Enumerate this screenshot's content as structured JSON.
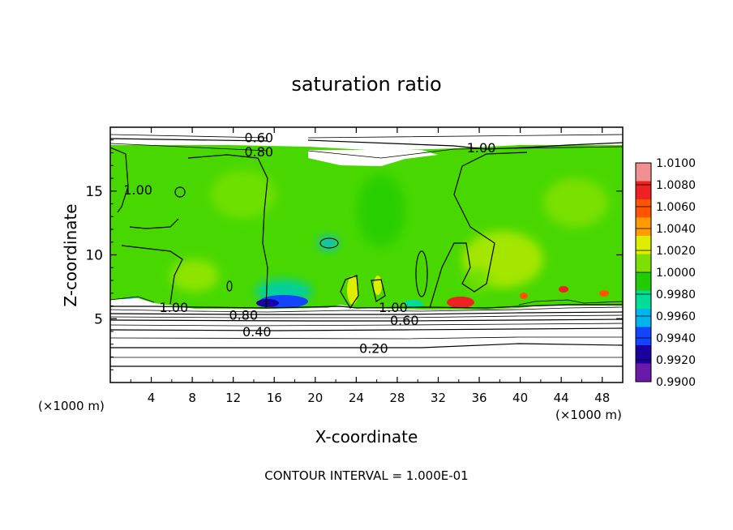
{
  "chart_data": {
    "type": "heatmap",
    "title": "saturation ratio",
    "xlabel": "X-coordinate",
    "ylabel": "Z-coordinate",
    "x_unit_label_left": "(×1000 m)",
    "x_unit_label_right": "(×1000 m)",
    "xlim": [
      0,
      50
    ],
    "ylim": [
      0,
      20
    ],
    "x_ticks": [
      4,
      8,
      12,
      16,
      20,
      24,
      28,
      32,
      36,
      40,
      44,
      48
    ],
    "y_ticks": [
      5,
      10,
      15
    ],
    "footer": "CONTOUR INTERVAL = 1.000E-01",
    "colorbar": {
      "levels": [
        "1.0100",
        "1.0080",
        "1.0060",
        "1.0040",
        "1.0020",
        "1.0000",
        "0.9980",
        "0.9960",
        "0.9940",
        "0.9920",
        "0.9900"
      ],
      "colors": [
        "#f09090",
        "#ee2222",
        "#ff5500",
        "#ff9a00",
        "#ddee00",
        "#7ee000",
        "#22cc00",
        "#00dd99",
        "#00b4ee",
        "#1544ff",
        "#1a00a0",
        "#6a1aa8"
      ]
    },
    "contour_labels": [
      {
        "text": "0.60",
        "x": 14.5,
        "z": 19.2
      },
      {
        "text": "0.80",
        "x": 14.5,
        "z": 18.1
      },
      {
        "text": "1.00",
        "x": 36.2,
        "z": 18.4
      },
      {
        "text": "1.00",
        "x": 2.7,
        "z": 15.1
      },
      {
        "text": "1.00",
        "x": 6.2,
        "z": 5.9
      },
      {
        "text": "0.80",
        "x": 13.0,
        "z": 5.3
      },
      {
        "text": "0.40",
        "x": 14.3,
        "z": 4.0
      },
      {
        "text": "1.00",
        "x": 27.6,
        "z": 5.9
      },
      {
        "text": "0.60",
        "x": 28.7,
        "z": 4.9
      },
      {
        "text": "0.20",
        "x": 25.7,
        "z": 2.7
      }
    ]
  }
}
